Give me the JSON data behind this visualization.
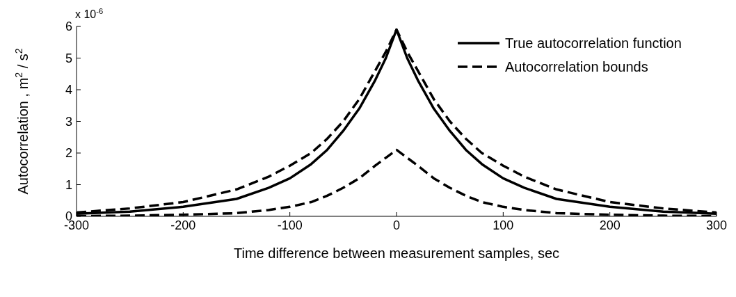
{
  "chart_data": {
    "type": "line",
    "xlabel": "Time difference between measurement samples, sec",
    "ylabel": "Autocorrelation , m$^{2}$ / s$^{2}$",
    "annotations": [
      "x 10$^{-6}$"
    ],
    "xlim": [
      -300,
      300
    ],
    "xticks": [
      -300,
      -200,
      -100,
      0,
      100,
      200,
      300
    ],
    "ylim": [
      0,
      6
    ],
    "yticks": [
      0,
      1,
      2,
      3,
      4,
      5,
      6
    ],
    "legend": "top right",
    "marker": "none",
    "series": [
      {
        "name": "True autocorrelation function",
        "color": "#000000",
        "line_style": "solid",
        "x": [
          -300,
          -250,
          -200,
          -150,
          -120,
          -100,
          -80,
          -65,
          -50,
          -35,
          -20,
          -10,
          0,
          10,
          20,
          35,
          50,
          65,
          80,
          100,
          120,
          150,
          200,
          250,
          300
        ],
        "values": [
          0.08,
          0.15,
          0.3,
          0.55,
          0.9,
          1.2,
          1.65,
          2.1,
          2.7,
          3.4,
          4.3,
          5.0,
          5.9,
          5.0,
          4.3,
          3.4,
          2.7,
          2.1,
          1.65,
          1.2,
          0.9,
          0.55,
          0.3,
          0.15,
          0.08
        ]
      },
      {
        "name": "Autocorrelation bounds",
        "color": "#000000",
        "line_style": "dashed",
        "x": [
          -300,
          -250,
          -200,
          -150,
          -120,
          -100,
          -80,
          -65,
          -50,
          -35,
          -20,
          -10,
          0,
          10,
          20,
          35,
          50,
          65,
          80,
          100,
          120,
          150,
          200,
          250,
          300
        ],
        "values": [
          0.12,
          0.25,
          0.45,
          0.85,
          1.25,
          1.6,
          2.0,
          2.45,
          3.0,
          3.7,
          4.6,
          5.2,
          5.9,
          5.2,
          4.6,
          3.7,
          3.0,
          2.45,
          2.0,
          1.6,
          1.25,
          0.85,
          0.45,
          0.25,
          0.12
        ]
      },
      {
        "color": "#000000",
        "line_style": "dashed",
        "x": [
          -300,
          -250,
          -200,
          -150,
          -120,
          -100,
          -80,
          -65,
          -50,
          -35,
          -20,
          -10,
          0,
          10,
          20,
          35,
          50,
          65,
          80,
          100,
          120,
          150,
          200,
          250,
          300
        ],
        "values": [
          0.01,
          0.02,
          0.05,
          0.1,
          0.2,
          0.3,
          0.45,
          0.65,
          0.9,
          1.2,
          1.6,
          1.85,
          2.1,
          1.85,
          1.6,
          1.2,
          0.9,
          0.65,
          0.45,
          0.3,
          0.2,
          0.1,
          0.05,
          0.02,
          0.01
        ]
      }
    ]
  }
}
